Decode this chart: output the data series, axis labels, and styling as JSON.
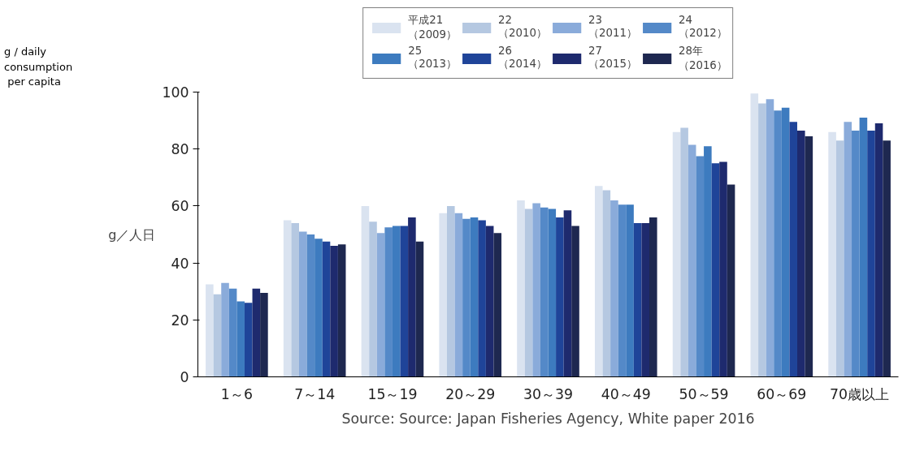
{
  "chart_data": {
    "type": "bar",
    "ylabel": "g／人日",
    "categories": [
      "1～6",
      "7～14",
      "15～19",
      "20～29",
      "30～39",
      "40～49",
      "50～59",
      "60～69",
      "70歳以上"
    ],
    "ylim": [
      0,
      100
    ],
    "yticks": [
      0,
      20,
      40,
      60,
      80,
      100
    ],
    "grid": false,
    "legend": "top",
    "annotations": [
      "g / daily\nconsumption\n per capita",
      "Source: Source: Japan Fisheries Agency, White paper 2016"
    ],
    "series": [
      {
        "name": "平成21（2009）",
        "color": "#dae3f0",
        "values": [
          32.5,
          55,
          60,
          57.5,
          62,
          67,
          86,
          99.5,
          86
        ]
      },
      {
        "name": "22（2010）",
        "color": "#b5c8e1",
        "values": [
          29,
          54,
          54.5,
          60,
          59,
          65.5,
          87.5,
          96,
          83
        ]
      },
      {
        "name": "23（2011）",
        "color": "#8aabda",
        "values": [
          33,
          51,
          50.5,
          57.5,
          61,
          62,
          81.5,
          97.5,
          89.5
        ]
      },
      {
        "name": "24（2012）",
        "color": "#5489c8",
        "values": [
          31,
          50,
          52.5,
          55.5,
          59.5,
          60.5,
          77.5,
          93.5,
          86.5
        ]
      },
      {
        "name": "25（2013）",
        "color": "#3d7bbf",
        "values": [
          26.5,
          48.5,
          53,
          56,
          59,
          60.5,
          81,
          94.5,
          91
        ]
      },
      {
        "name": "26（2014）",
        "color": "#1f4499",
        "values": [
          26,
          47.5,
          53,
          55,
          56,
          54,
          75,
          89.5,
          86.5
        ]
      },
      {
        "name": "27（2015）",
        "color": "#1e2a6e",
        "values": [
          31,
          46,
          56,
          53,
          58.5,
          54,
          75.5,
          86.5,
          89
        ]
      },
      {
        "name": "28年（2016）",
        "color": "#1e2850",
        "values": [
          29.5,
          46.5,
          47.5,
          50.5,
          53,
          56,
          67.5,
          84.5,
          83
        ]
      }
    ]
  }
}
